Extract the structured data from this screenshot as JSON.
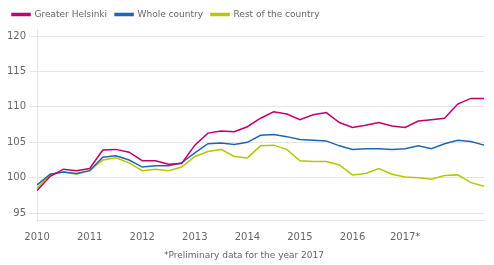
{
  "chart_data": {
    "type": "line",
    "footnote": "*Preliminary data for the year 2017",
    "categories": [
      "2010",
      null,
      null,
      null,
      "2011",
      null,
      null,
      null,
      "2012",
      null,
      null,
      null,
      "2013",
      null,
      null,
      null,
      "2014",
      null,
      null,
      null,
      "2015",
      null,
      null,
      null,
      "2016",
      null,
      null,
      null,
      "2017*",
      null,
      null,
      null,
      null,
      null,
      null
    ],
    "series": [
      {
        "name": "Greater Helsinki",
        "color": "#c0006a",
        "values": [
          98.2,
          100.2,
          101.2,
          101.0,
          101.3,
          103.9,
          104.0,
          103.6,
          102.4,
          102.4,
          101.9,
          102.0,
          104.6,
          106.3,
          106.6,
          106.5,
          107.2,
          108.4,
          109.3,
          109.0,
          108.2,
          108.9,
          109.2,
          107.8,
          107.1,
          107.4,
          107.8,
          107.3,
          107.1,
          108.0,
          108.2,
          108.4,
          110.4,
          111.2,
          111.2
        ]
      },
      {
        "name": "Whole country",
        "color": "#2166ac",
        "values": [
          99.0,
          100.5,
          100.8,
          100.6,
          101.0,
          102.9,
          103.1,
          102.5,
          101.5,
          101.7,
          101.7,
          102.1,
          103.5,
          104.8,
          104.9,
          104.7,
          105.0,
          106.0,
          106.1,
          105.8,
          105.4,
          105.3,
          105.2,
          104.5,
          104.0,
          104.1,
          104.1,
          104.0,
          104.1,
          104.5,
          104.1,
          104.8,
          105.3,
          105.1,
          104.6
        ]
      },
      {
        "name": "Rest of the country",
        "color": "#b5c800",
        "values": [
          98.5,
          100.5,
          100.8,
          100.5,
          101.0,
          102.5,
          102.8,
          102.1,
          101.0,
          101.2,
          101.0,
          101.5,
          103.0,
          103.7,
          104.0,
          103.0,
          102.8,
          104.5,
          104.6,
          104.0,
          102.4,
          102.3,
          102.3,
          101.8,
          100.4,
          100.6,
          101.3,
          100.5,
          100.1,
          100.0,
          99.8,
          100.3,
          100.4,
          99.3,
          98.8
        ]
      }
    ],
    "ylim": [
      94,
      121
    ],
    "yticks": [
      95,
      100,
      105,
      110,
      115,
      120
    ],
    "grid": true,
    "legend": "upper left"
  }
}
